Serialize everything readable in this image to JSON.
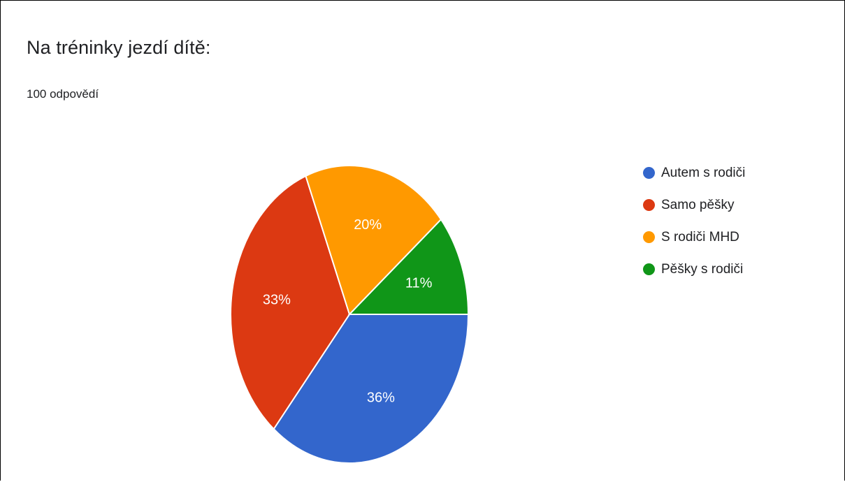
{
  "chart_data": {
    "type": "pie",
    "title": "Na tréninky jezdí dítě:",
    "subtitle": "100 odpovědí",
    "legend_position": "right",
    "slices": [
      {
        "label": "Autem s rodiči",
        "value": 36,
        "display": "36%",
        "color": "#3366cc"
      },
      {
        "label": "Samo pěšky",
        "value": 33,
        "display": "33%",
        "color": "#dc3912"
      },
      {
        "label": "S rodiči MHD",
        "value": 20,
        "display": "20%",
        "color": "#ff9900"
      },
      {
        "label": "Pěšky s rodiči",
        "value": 11,
        "display": "11%",
        "color": "#109618"
      }
    ]
  }
}
